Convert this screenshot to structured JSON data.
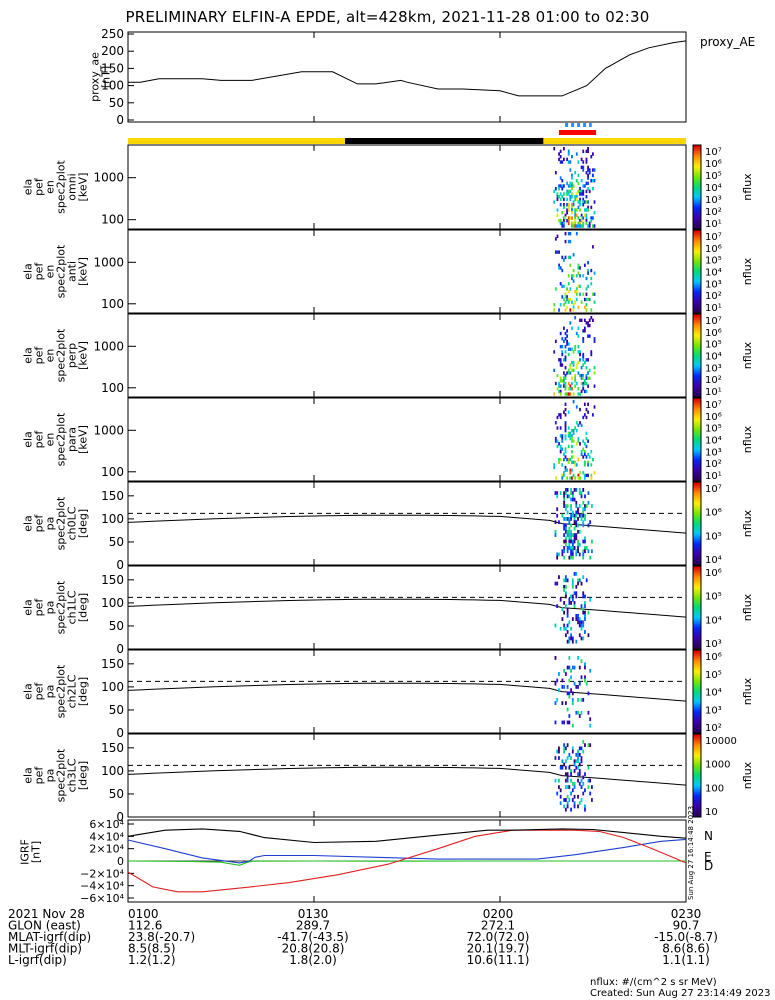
{
  "title": "PRELIMINARY ELFIN-A EPDE, alt=428km, 2021-11-28 01:00 to 02:30",
  "side_stamp": "Sun Aug 27 16:14:48 2023",
  "created": "Created: Sun Aug 27 23:14:49 2023",
  "units_note": "nflux: #/(cm^2 s sr MeV)",
  "colors": {
    "axis": "#000000",
    "bar_day": "#ffd700",
    "bar_night": "#000000",
    "marker_red": "#ff0000",
    "marker_blue": "#1f8fff",
    "grf_n": "#1f3fd0",
    "grf_e": "#22c022",
    "grf_d": "#e02020"
  },
  "chart_data": [
    {
      "type": "line",
      "id": "proxy-ae",
      "ylabel_lines": [
        "proxy_ae",
        "[nT]"
      ],
      "legend": "proxy_AE",
      "ylim": [
        0,
        250
      ],
      "yticks": [
        0,
        50,
        100,
        150,
        200,
        250
      ],
      "x_min": [
        0,
        2,
        5,
        12,
        15,
        20,
        28,
        33,
        37,
        40,
        44,
        45,
        50,
        54,
        60,
        63,
        67,
        70,
        74,
        77,
        81,
        84,
        88,
        90
      ],
      "y": [
        110,
        110,
        120,
        120,
        115,
        115,
        140,
        140,
        105,
        105,
        115,
        110,
        90,
        90,
        85,
        70,
        70,
        70,
        100,
        150,
        190,
        210,
        225,
        230
      ]
    },
    {
      "type": "bar",
      "id": "day-night-bar",
      "segments": [
        {
          "from": 0,
          "to": 35,
          "kind": "day"
        },
        {
          "from": 35,
          "to": 67,
          "kind": "night"
        },
        {
          "from": 67,
          "to": 90,
          "kind": "day"
        }
      ],
      "science_zone_red": [
        69.5,
        75.5
      ],
      "science_zone_blue": [
        70.5,
        74.8
      ]
    },
    {
      "type": "heatmap",
      "id": "spec-omni",
      "ylabel_lines": [
        "ela",
        "pef",
        "en",
        "spec2plot",
        "omni",
        "[keV]"
      ],
      "yticks": [
        100,
        1000
      ],
      "y_log_range": [
        60,
        6000
      ],
      "colorbar": {
        "label": "nflux",
        "ticks": [
          "10⁷",
          "10⁶",
          "10⁵",
          "10⁴",
          "10³",
          "10²",
          "10¹"
        ]
      }
    },
    {
      "type": "heatmap",
      "id": "spec-anti",
      "ylabel_lines": [
        "ela",
        "pef",
        "en",
        "spec2plot",
        "anti",
        "[keV]"
      ],
      "yticks": [
        100,
        1000
      ],
      "y_log_range": [
        60,
        6000
      ],
      "colorbar": {
        "label": "nflux",
        "ticks": [
          "10⁷",
          "10⁶",
          "10⁵",
          "10⁴",
          "10³",
          "10²",
          "10¹"
        ]
      }
    },
    {
      "type": "heatmap",
      "id": "spec-perp",
      "ylabel_lines": [
        "ela",
        "pef",
        "en",
        "spec2plot",
        "perp",
        "[keV]"
      ],
      "yticks": [
        100,
        1000
      ],
      "y_log_range": [
        60,
        6000
      ],
      "colorbar": {
        "label": "nflux",
        "ticks": [
          "10⁷",
          "10⁶",
          "10⁵",
          "10⁴",
          "10³",
          "10²",
          "10¹"
        ]
      }
    },
    {
      "type": "heatmap",
      "id": "spec-para",
      "ylabel_lines": [
        "ela",
        "pef",
        "en",
        "spec2plot",
        "para",
        "[keV]"
      ],
      "yticks": [
        100,
        1000
      ],
      "y_log_range": [
        60,
        6000
      ],
      "colorbar": {
        "label": "nflux",
        "ticks": [
          "10⁷",
          "10⁶",
          "10⁵",
          "10⁴",
          "10³",
          "10²",
          "10¹"
        ]
      }
    },
    {
      "type": "heatmap",
      "id": "pa-ch0",
      "ylabel_lines": [
        "ela",
        "pef",
        "pa",
        "spec2plot",
        "ch0LC",
        "[deg]"
      ],
      "ylim": [
        0,
        180
      ],
      "yticks": [
        0,
        50,
        100,
        150
      ],
      "colorbar": {
        "label": "nflux",
        "ticks": [
          "10⁷",
          "10⁶",
          "10⁵",
          "10⁴"
        ]
      }
    },
    {
      "type": "heatmap",
      "id": "pa-ch1",
      "ylabel_lines": [
        "ela",
        "pef",
        "pa",
        "spec2plot",
        "ch1LC",
        "[deg]"
      ],
      "ylim": [
        0,
        180
      ],
      "yticks": [
        0,
        50,
        100,
        150
      ],
      "colorbar": {
        "label": "nflux",
        "ticks": [
          "10⁶",
          "10⁵",
          "10⁴",
          "10³"
        ]
      }
    },
    {
      "type": "heatmap",
      "id": "pa-ch2",
      "ylabel_lines": [
        "ela",
        "pef",
        "pa",
        "spec2plot",
        "ch2LC",
        "[deg]"
      ],
      "ylim": [
        0,
        180
      ],
      "yticks": [
        0,
        50,
        100,
        150
      ],
      "colorbar": {
        "label": "nflux",
        "ticks": [
          "10⁶",
          "10⁵",
          "10⁴",
          "10³",
          "10²"
        ]
      }
    },
    {
      "type": "heatmap",
      "id": "pa-ch3",
      "ylabel_lines": [
        "ela",
        "pef",
        "pa",
        "spec2plot",
        "ch3LC",
        "[deg]"
      ],
      "ylim": [
        0,
        180
      ],
      "yticks": [
        0,
        50,
        100,
        150
      ],
      "colorbar": {
        "label": "nflux",
        "ticks": [
          "10000",
          "1000",
          "100",
          "10"
        ]
      }
    },
    {
      "type": "line",
      "id": "igrf",
      "ylabel_lines": [
        "IGRF",
        "[nT]"
      ],
      "ylim": [
        -60000,
        60000
      ],
      "yticks": [
        "6×10⁴",
        "4×10⁴",
        "2×10⁴",
        "0",
        "−2×10⁴",
        "−4×10⁴",
        "−6×10⁴"
      ],
      "series": [
        {
          "name": "N",
          "color": "#1f3fd0",
          "x_min": [
            0,
            6,
            12,
            18,
            19.5,
            20.5,
            22,
            30,
            40,
            50,
            58,
            62,
            66,
            72,
            80,
            86,
            90
          ],
          "y": [
            34000,
            20000,
            5000,
            -3000,
            -500,
            6000,
            9000,
            9000,
            6000,
            3000,
            3000,
            3000,
            3000,
            10000,
            22000,
            32000,
            35000
          ]
        },
        {
          "name": "E",
          "color": "#22c022",
          "x_min": [
            0,
            10,
            15,
            18,
            19,
            20,
            30,
            40,
            50,
            60,
            70,
            80,
            90
          ],
          "y": [
            0,
            -600,
            -2000,
            -7000,
            -3000,
            -400,
            0,
            -400,
            -200,
            0,
            0,
            0,
            0
          ]
        },
        {
          "name": "D",
          "color": "#e02020",
          "x_min": [
            0,
            4,
            8,
            12,
            18,
            26,
            34,
            42,
            50,
            56,
            62,
            66,
            72,
            76,
            80,
            85,
            90
          ],
          "y": [
            -18000,
            -42000,
            -50000,
            -50000,
            -44000,
            -35000,
            -22000,
            -5000,
            20000,
            40000,
            50000,
            50000,
            50000,
            48000,
            38000,
            18000,
            -3000
          ]
        },
        {
          "name": "",
          "color": "#000000",
          "x_min": [
            0,
            6,
            12,
            18,
            22,
            30,
            40,
            50,
            58,
            62,
            70,
            75,
            80,
            86,
            90
          ],
          "y": [
            40000,
            50000,
            52000,
            48000,
            38000,
            30000,
            32000,
            42000,
            50000,
            50000,
            52000,
            51000,
            46000,
            40000,
            37000
          ]
        }
      ]
    }
  ],
  "xaxis": {
    "tick_labels": [
      "0100",
      "0130",
      "0200",
      "0230"
    ],
    "tick_positions_min": [
      0,
      30,
      60,
      90
    ],
    "rows": [
      {
        "label": "2021 Nov 28",
        "values": [
          "0100",
          "0130",
          "0200",
          "0230"
        ]
      },
      {
        "label": "GLON (east)",
        "values": [
          "112.6",
          "289.7",
          "272.1",
          "90.7"
        ]
      },
      {
        "label": "MLAT-igrf(dip)",
        "values": [
          "23.8(-20.7)",
          "-41.7(-43.5)",
          "72.0(72.0)",
          "-15.0(-8.7)"
        ]
      },
      {
        "label": "MLT-igrf(dip)",
        "values": [
          "8.5(8.5)",
          "20.8(20.8)",
          "20.1(19.7)",
          "8.6(8.6)"
        ]
      },
      {
        "label": "L-igrf(dip)",
        "values": [
          "1.2(1.2)",
          "1.8(2.0)",
          "10.6(11.1)",
          "1.1(1.1)"
        ]
      }
    ]
  }
}
